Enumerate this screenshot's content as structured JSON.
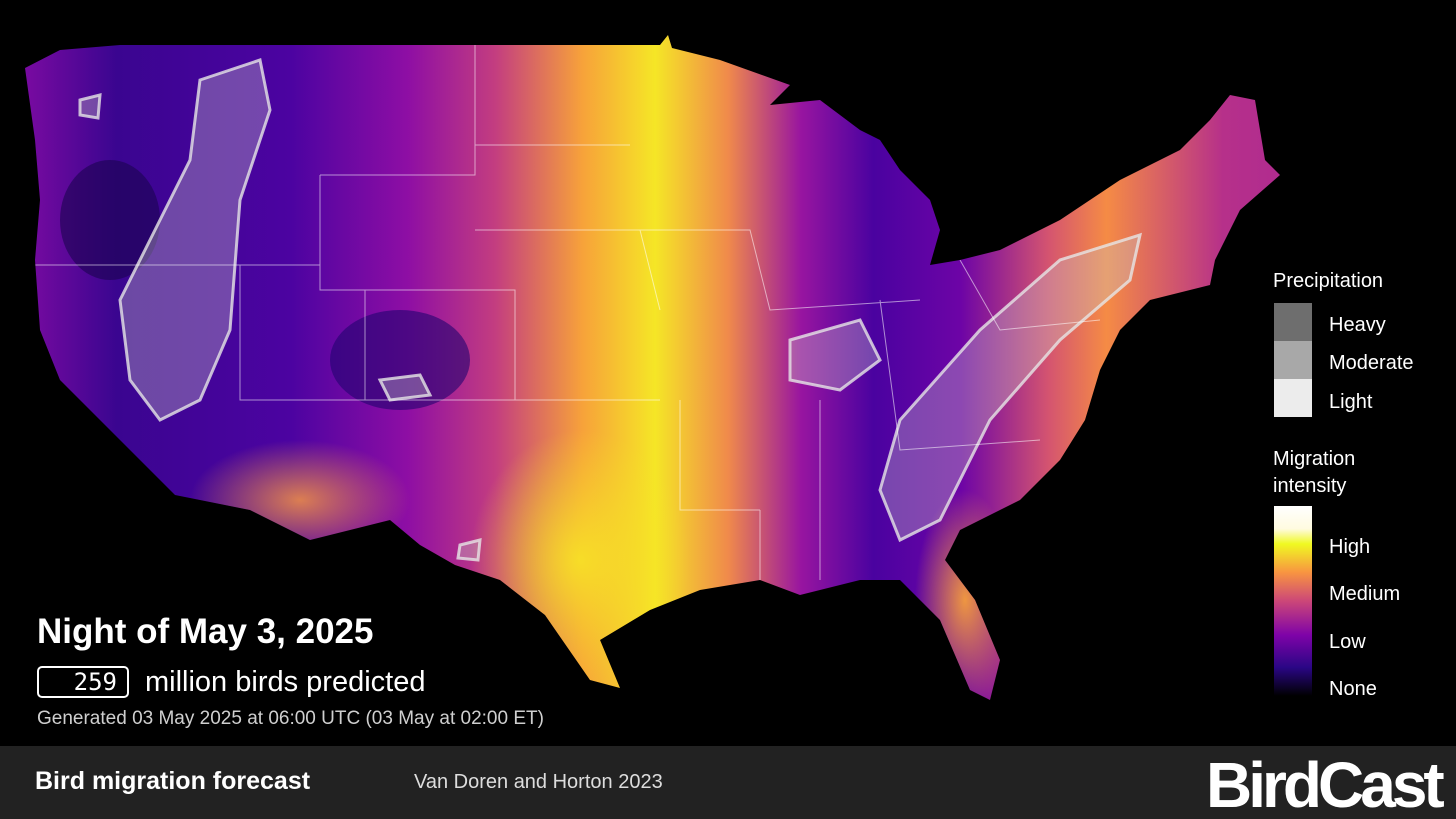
{
  "map": {
    "title": "Night of May 3, 2025",
    "birds_count": 259,
    "birds_text": "million birds predicted",
    "generated": "Generated 03 May 2025 at 06:00 UTC (03 May at 02:00 ET)"
  },
  "legend": {
    "precipitation": {
      "title": "Precipitation",
      "levels": [
        "Heavy",
        "Moderate",
        "Light"
      ]
    },
    "intensity": {
      "title": "Migration intensity",
      "levels": [
        "High",
        "Medium",
        "Low",
        "None"
      ]
    }
  },
  "footer": {
    "product": "Bird migration forecast",
    "credit": "Van Doren and Horton 2023",
    "logo": "BirdCast"
  }
}
